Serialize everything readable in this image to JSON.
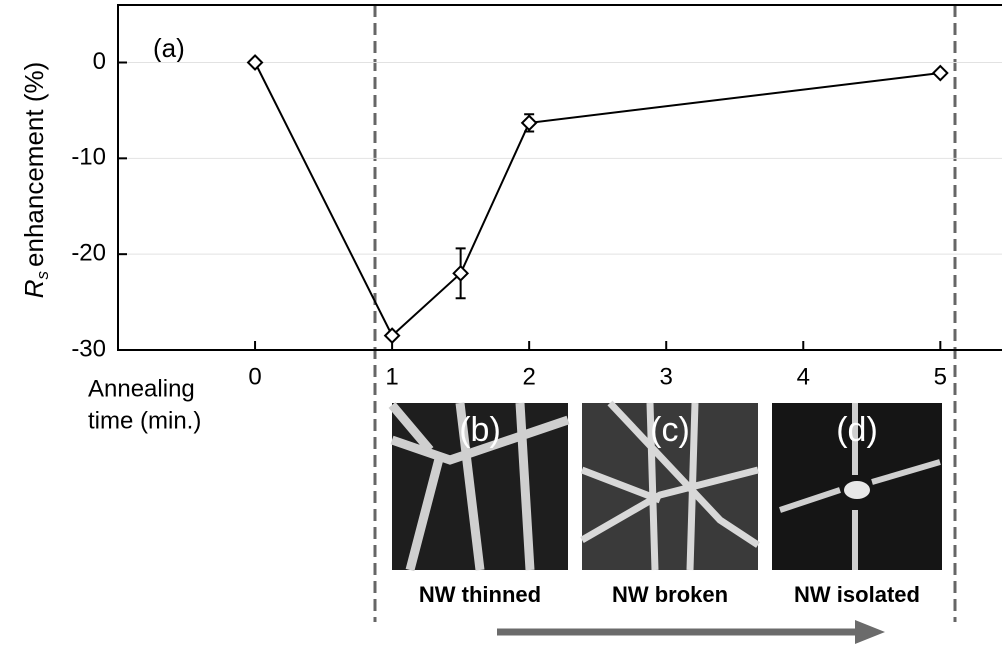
{
  "chart_data": {
    "type": "line",
    "annotation": "(a)",
    "ylabel_symbol": "R",
    "ylabel_subscript": "s",
    "ylabel": "enhancement (%)",
    "xlabel_lines": [
      "Annealing",
      "time (min.)"
    ],
    "series": [
      {
        "color": "#000000",
        "x": [
          0,
          1,
          1.5,
          2,
          5
        ],
        "values": [
          0,
          -28.5,
          -22,
          -6.3,
          -1.1
        ],
        "errors": [
          null,
          null,
          2.6,
          0.9,
          null
        ]
      }
    ],
    "xlim": [
      -1,
      5.45
    ],
    "xticks": [
      0,
      1,
      2,
      3,
      4,
      5
    ],
    "ylim": [
      -30,
      6
    ],
    "yticks": [
      0,
      -10,
      -20,
      -30
    ],
    "grid": true
  },
  "panels": [
    {
      "label": "(b)",
      "caption": "NW thinned"
    },
    {
      "label": "(c)",
      "caption": "NW broken"
    },
    {
      "label": "(d)",
      "caption": "NW isolated"
    }
  ]
}
